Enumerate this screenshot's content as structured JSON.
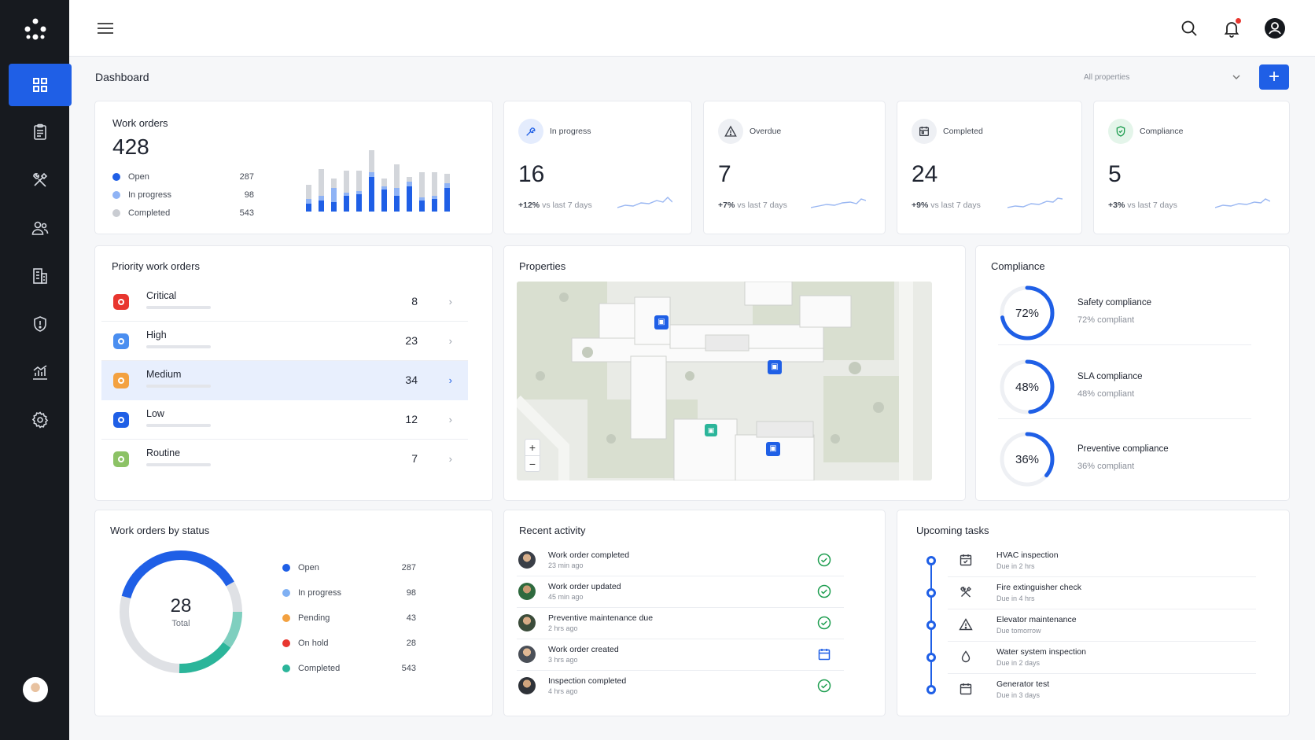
{
  "header": {
    "page_title": "Dashboard",
    "property_filter": "All properties",
    "add_label": "+"
  },
  "work_orders": {
    "title": "Work orders",
    "total": "428",
    "legend": [
      {
        "label": "Open",
        "value": "287",
        "color": "#1f5fe6"
      },
      {
        "label": "In progress",
        "value": "98",
        "color": "#8fb3f5"
      },
      {
        "label": "Completed",
        "value": "543",
        "color": "#c9ccd2"
      }
    ]
  },
  "kpis": [
    {
      "label": "In progress",
      "value": "16",
      "delta": "+12%",
      "delta_text": "vs last 7 days",
      "icon": "wrench-icon"
    },
    {
      "label": "Overdue",
      "value": "7",
      "delta": "+7%",
      "delta_text": "vs last 7 days",
      "icon": "warning-icon"
    },
    {
      "label": "Completed",
      "value": "24",
      "delta": "+9%",
      "delta_text": "vs last 7 days",
      "icon": "calendar-icon"
    },
    {
      "label": "Compliance",
      "value": "5",
      "delta": "+3%",
      "delta_text": "vs last 7 days",
      "icon": "shield-check-icon"
    }
  ],
  "priority": {
    "title": "Priority work orders",
    "items": [
      {
        "label": "Critical",
        "count": "8",
        "color": "#e8362f"
      },
      {
        "label": "High",
        "count": "23",
        "color": "#4a8ef0"
      },
      {
        "label": "Medium",
        "count": "34",
        "color": "#f3a140"
      },
      {
        "label": "Low",
        "count": "12",
        "color": "#1f5fe6"
      },
      {
        "label": "Routine",
        "count": "7",
        "color": "#8cc265"
      }
    ]
  },
  "properties": {
    "title": "Properties",
    "zoom_in": "+",
    "zoom_out": "−"
  },
  "compliance": {
    "title": "Compliance",
    "items": [
      {
        "name": "Safety compliance",
        "percent": "72%",
        "sub": "72% compliant",
        "value": 0.72
      },
      {
        "name": "SLA compliance",
        "percent": "48%",
        "sub": "48% compliant",
        "value": 0.48
      },
      {
        "name": "Preventive compliance",
        "percent": "36%",
        "sub": "36% compliant",
        "value": 0.36
      }
    ]
  },
  "status": {
    "title": "Work orders by status",
    "center_value": "28",
    "center_label": "Total",
    "legend": [
      {
        "label": "Open",
        "value": "287",
        "color": "#1f5fe6"
      },
      {
        "label": "In progress",
        "value": "98",
        "color": "#7fb0f3"
      },
      {
        "label": "Pending",
        "value": "43",
        "color": "#f3a140"
      },
      {
        "label": "On hold",
        "value": "28",
        "color": "#e8362f"
      },
      {
        "label": "Completed",
        "value": "543",
        "color": "#2bb59a"
      }
    ]
  },
  "activity": {
    "title": "Recent activity",
    "items": [
      {
        "title": "Work order completed",
        "time": "23 min ago",
        "status": "check-circle-icon"
      },
      {
        "title": "Work order updated",
        "time": "45 min ago",
        "status": "check-circle-icon"
      },
      {
        "title": "Preventive maintenance due",
        "time": "2 hrs ago",
        "status": "check-circle-icon"
      },
      {
        "title": "Work order created",
        "time": "3 hrs ago",
        "status": "calendar-icon"
      },
      {
        "title": "Inspection completed",
        "time": "4 hrs ago",
        "status": "check-circle-icon"
      }
    ]
  },
  "tasks": {
    "title": "Upcoming tasks",
    "items": [
      {
        "title": "HVAC inspection",
        "due": "Due in 2 hrs",
        "icon": "calendar-icon"
      },
      {
        "title": "Fire extinguisher check",
        "due": "Due in 4 hrs",
        "icon": "tools-icon"
      },
      {
        "title": "Elevator maintenance",
        "due": "Due tomorrow",
        "icon": "warning-icon"
      },
      {
        "title": "Water system inspection",
        "due": "Due in 2 days",
        "icon": "droplet-icon"
      },
      {
        "title": "Generator test",
        "due": "Due in 3 days",
        "icon": "calendar-icon"
      }
    ]
  }
}
